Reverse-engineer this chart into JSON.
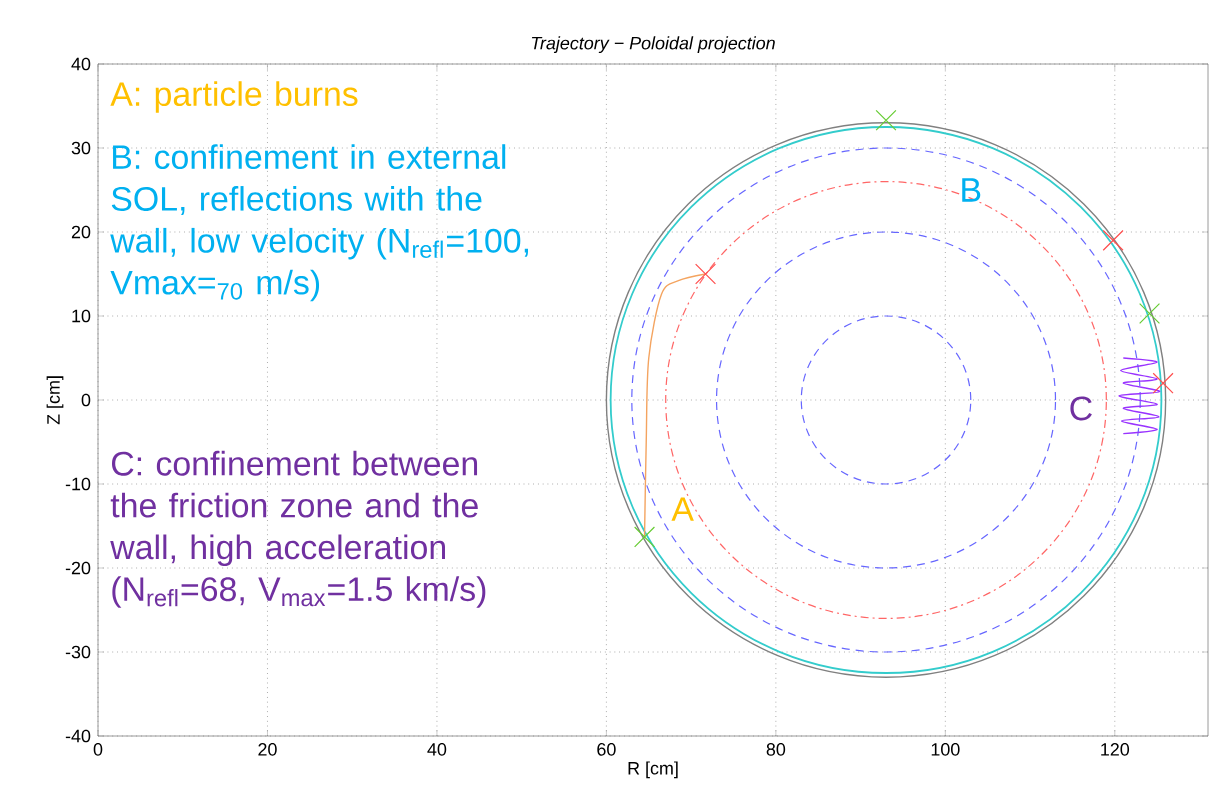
{
  "chart_data": {
    "type": "line",
    "title": "Trajectory − Poloidal projection",
    "xlabel": "R [cm]",
    "ylabel": "Z [cm]",
    "xlim": [
      0,
      131
    ],
    "ylim": [
      -40,
      40
    ],
    "xticks": [
      0,
      20,
      40,
      60,
      80,
      100,
      120
    ],
    "yticks": [
      -40,
      -30,
      -20,
      -10,
      0,
      10,
      20,
      30,
      40
    ],
    "grid": true,
    "series": [
      {
        "color": "#f4a460",
        "line_style": "solid",
        "x": [
          64.5,
          64.7,
          65,
          66.5,
          68.5,
          71.7
        ],
        "values": [
          -16.3,
          -5,
          5,
          12.6,
          14.2,
          15
        ]
      },
      {
        "color": "#9933ff",
        "line_style": "solid",
        "x": [
          121,
          125,
          120.8,
          125.2,
          121,
          125,
          120.5,
          125.3,
          121,
          125,
          120.7,
          125,
          121
        ],
        "values": [
          -4,
          -3.5,
          -2.5,
          -2,
          -1,
          -0.5,
          0.5,
          1,
          2,
          2.5,
          3.5,
          4.5,
          5
        ]
      },
      {
        "type": "scatter",
        "color": "#66cc33",
        "marker": "cross",
        "x": [
          64.5,
          93,
          124.1
        ],
        "values": [
          -16.3,
          33.3,
          10.3
        ]
      },
      {
        "type": "scatter",
        "color": "#ff4d4d",
        "marker": "cross",
        "x": [
          71.7,
          119.8,
          125.7
        ],
        "values": [
          15,
          19,
          2
        ]
      }
    ],
    "annotations": [
      "A: particle burns",
      "B: confinement in external SOL, reflections with the wall, low velocity (N$_{refl}$=100, Vmax=$_{70}$ m/s)",
      "C: confinement between the friction zone and the wall, high acceleration (N$_{refl}$=68, V$_{max}$=1.5 km/s)",
      "A",
      "B",
      "C"
    ]
  }
}
